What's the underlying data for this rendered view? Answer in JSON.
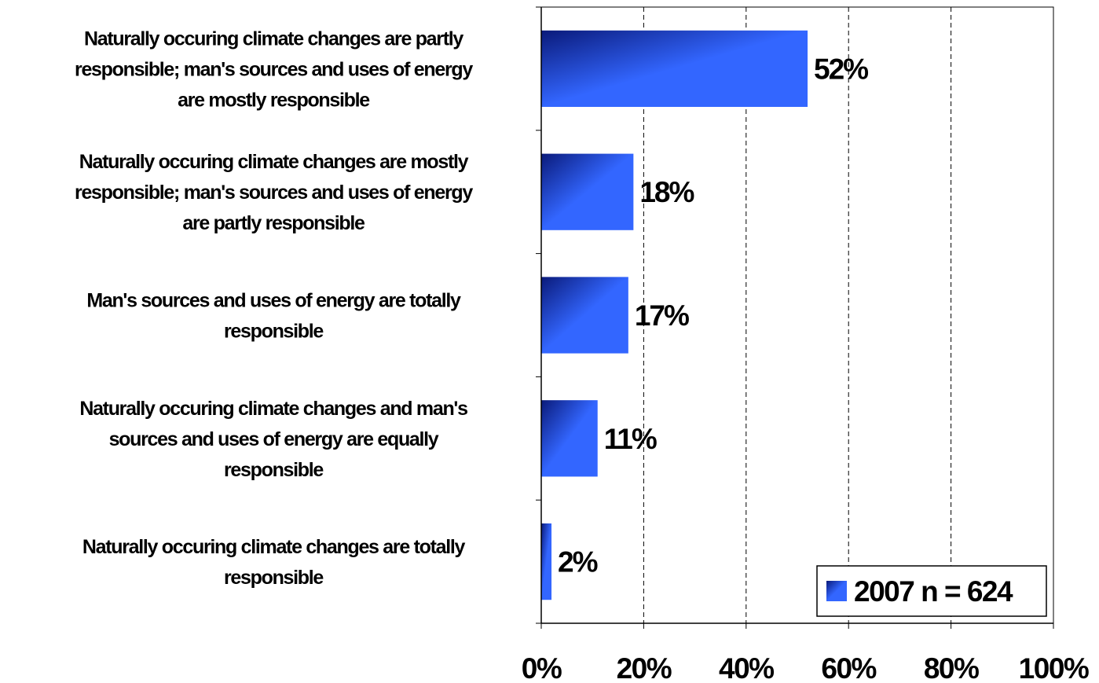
{
  "colors": {
    "bar_light": "#3366ff",
    "bar_dark": "#0a1a7a"
  },
  "chart_data": {
    "type": "bar",
    "orientation": "horizontal",
    "categories": [
      "Naturally occuring climate changes are partly responsible; man's sources and uses of energy are mostly responsible",
      "Naturally occuring climate changes are mostly responsible; man's sources and uses of energy are partly responsible",
      "Man's sources and uses of energy are totally responsible",
      "Naturally occuring climate changes and man's sources and uses of energy are equally responsible",
      "Naturally occuring climate changes are totally responsible"
    ],
    "category_lines": [
      [
        "Naturally occuring climate changes are partly",
        "responsible; man's sources and uses of energy",
        "are mostly responsible"
      ],
      [
        "Naturally occuring climate changes are mostly",
        "responsible; man's sources and uses of energy",
        "are partly responsible"
      ],
      [
        "Man's sources and uses of energy are totally",
        "responsible"
      ],
      [
        "Naturally occuring climate changes and man's",
        "sources and uses of energy are equally",
        "responsible"
      ],
      [
        "Naturally occuring climate changes are totally",
        "responsible"
      ]
    ],
    "series": [
      {
        "name": "2007 n = 624",
        "values": [
          52,
          18,
          17,
          11,
          2
        ]
      }
    ],
    "data_labels": [
      "52%",
      "18%",
      "17%",
      "11%",
      "2%"
    ],
    "xlim": [
      0,
      100
    ],
    "x_ticks": [
      0,
      20,
      40,
      60,
      80,
      100
    ],
    "x_tick_labels": [
      "0%",
      "20%",
      "40%",
      "60%",
      "80%",
      "100%"
    ],
    "grid": "vertical dashed",
    "legend_position": "bottom-right"
  }
}
